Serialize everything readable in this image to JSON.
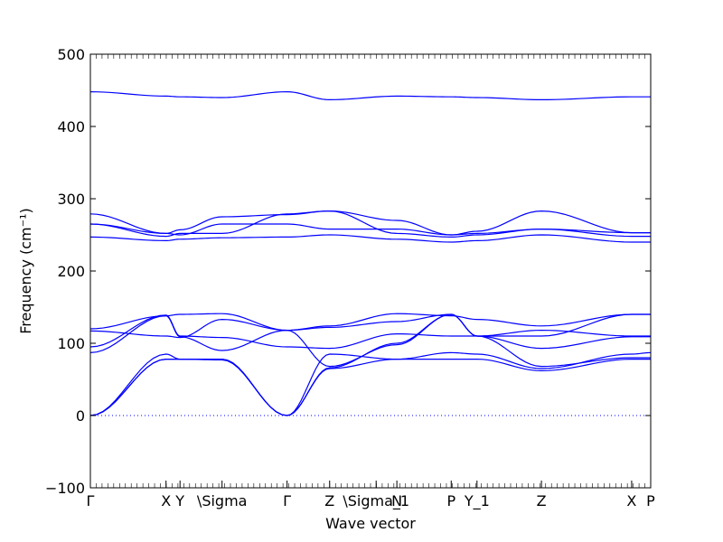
{
  "chart_data": {
    "type": "line",
    "title": "",
    "xlabel": "Wave vector",
    "ylabel": "Frequency (cm⁻¹)",
    "ylim": [
      -100,
      500
    ],
    "xlim": [
      0,
      1
    ],
    "grid": false,
    "line_color": "#0000ff",
    "zero_line_color": "#0000ff",
    "yticks": [
      -100,
      0,
      100,
      200,
      300,
      400,
      500
    ],
    "ytick_labels": [
      "−100",
      "0",
      "100",
      "200",
      "300",
      "400",
      "500"
    ],
    "xticks": [
      {
        "x": 0.0,
        "label": "Γ"
      },
      {
        "x": 0.135,
        "label": "X"
      },
      {
        "x": 0.16,
        "label": "Y"
      },
      {
        "x": 0.235,
        "label": "\\Sigma"
      },
      {
        "x": 0.351,
        "label": "Γ"
      },
      {
        "x": 0.427,
        "label": "Z"
      },
      {
        "x": 0.51,
        "label": "\\Sigma_1"
      },
      {
        "x": 0.547,
        "label": "N"
      },
      {
        "x": 0.644,
        "label": "P"
      },
      {
        "x": 0.69,
        "label": "Y_1"
      },
      {
        "x": 0.805,
        "label": "Z"
      },
      {
        "x": 0.966,
        "label": "X"
      },
      {
        "x": 1.0,
        "label": "P"
      }
    ],
    "series": [
      {
        "x": [
          0,
          0.135,
          0.16,
          0.235,
          0.351,
          0.427,
          0.547,
          0.644,
          0.69,
          0.805,
          0.966,
          1
        ],
        "values": [
          448,
          442,
          441,
          440,
          448,
          437,
          442,
          441,
          440,
          437,
          441,
          441
        ]
      },
      {
        "x": [
          0,
          0.135,
          0.16,
          0.235,
          0.351,
          0.427,
          0.547,
          0.644,
          0.69,
          0.805,
          0.966,
          1
        ],
        "values": [
          279,
          252,
          257,
          275,
          278,
          283,
          270,
          250,
          255,
          283,
          253,
          253
        ]
      },
      {
        "x": [
          0,
          0.135,
          0.16,
          0.235,
          0.351,
          0.427,
          0.547,
          0.644,
          0.69,
          0.805,
          0.966,
          1
        ],
        "values": [
          265,
          252,
          250,
          265,
          265,
          258,
          258,
          250,
          252,
          258,
          253,
          253
        ]
      },
      {
        "x": [
          0,
          0.135,
          0.16,
          0.235,
          0.351,
          0.427,
          0.547,
          0.644,
          0.69,
          0.805,
          0.966,
          1
        ],
        "values": [
          265,
          248,
          252,
          252,
          279,
          283,
          252,
          247,
          250,
          258,
          248,
          248
        ]
      },
      {
        "x": [
          0,
          0.135,
          0.16,
          0.235,
          0.351,
          0.427,
          0.547,
          0.644,
          0.69,
          0.805,
          0.966,
          1
        ],
        "values": [
          247,
          242,
          244,
          246,
          247,
          250,
          244,
          240,
          242,
          250,
          240,
          240
        ]
      },
      {
        "x": [
          0,
          0.135,
          0.16,
          0.235,
          0.351,
          0.427,
          0.547,
          0.644,
          0.69,
          0.805,
          0.966,
          1
        ],
        "values": [
          120,
          138,
          140,
          141,
          118,
          124,
          141,
          138,
          133,
          124,
          140,
          140
        ]
      },
      {
        "x": [
          0,
          0.135,
          0.16,
          0.235,
          0.351,
          0.427,
          0.547,
          0.644,
          0.69,
          0.805,
          0.966,
          1
        ],
        "values": [
          117,
          110,
          108,
          133,
          118,
          122,
          130,
          140,
          110,
          110,
          140,
          140
        ]
      },
      {
        "x": [
          0,
          0.135,
          0.16,
          0.235,
          0.351,
          0.427,
          0.547,
          0.644,
          0.69,
          0.805,
          0.966,
          1
        ],
        "values": [
          95,
          139,
          110,
          108,
          95,
          93,
          113,
          110,
          110,
          118,
          110,
          110
        ]
      },
      {
        "x": [
          0,
          0.135,
          0.16,
          0.235,
          0.351,
          0.427,
          0.547,
          0.644,
          0.69,
          0.805,
          0.966,
          1
        ],
        "values": [
          87,
          138,
          109,
          90,
          118,
          68,
          98,
          140,
          110,
          93,
          109,
          109
        ]
      },
      {
        "x": [
          0,
          0.135,
          0.16,
          0.235,
          0.351,
          0.427,
          0.547,
          0.644,
          0.69,
          0.805,
          0.966,
          1
        ],
        "values": [
          0,
          85,
          78,
          78,
          0,
          85,
          78,
          87,
          85,
          65,
          85,
          87
        ]
      },
      {
        "x": [
          0,
          0.135,
          0.16,
          0.235,
          0.351,
          0.427,
          0.547,
          0.644,
          0.69,
          0.805,
          0.966,
          1
        ],
        "values": [
          0,
          78,
          78,
          77,
          0,
          65,
          78,
          78,
          78,
          62,
          78,
          78
        ]
      },
      {
        "x": [
          0,
          0.135,
          0.16,
          0.235,
          0.351,
          0.427,
          0.547,
          0.644,
          0.69,
          0.805,
          0.966,
          1
        ],
        "values": [
          0,
          78,
          78,
          78,
          0,
          66,
          100,
          140,
          110,
          68,
          80,
          80
        ]
      }
    ]
  }
}
